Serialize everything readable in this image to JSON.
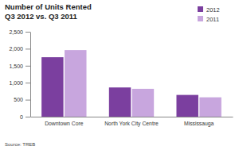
{
  "chart_data": {
    "type": "bar",
    "title": "Number of Units Rented",
    "subtitle": "Q3 2012 vs. Q3 2011",
    "categories": [
      "Downtown Core",
      "North York City Centre",
      "Mississauga"
    ],
    "series": [
      {
        "name": "2012",
        "color": "#7b3f9f",
        "values": [
          1750,
          860,
          640
        ]
      },
      {
        "name": "2011",
        "color": "#c8a6de",
        "values": [
          1960,
          820,
          570
        ]
      }
    ],
    "ylim": [
      0,
      2500
    ],
    "yticks": [
      0,
      500,
      {
        "value": 1000,
        "label": "1,000"
      },
      {
        "value": 1500,
        "label": "1,500"
      },
      {
        "value": 2000,
        "label": "2,000"
      },
      {
        "value": 2500,
        "label": "2,500"
      }
    ],
    "grid": false,
    "legend": "top-right",
    "annotations": [
      "Source: TREB"
    ]
  }
}
